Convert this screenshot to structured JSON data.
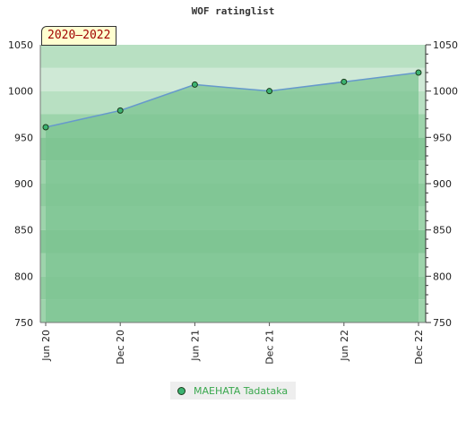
{
  "chart_data": {
    "type": "area",
    "title": "WOF ratinglist",
    "period": "2020–2022",
    "categories": [
      "Jun 20",
      "Dec 20",
      "Jun 21",
      "Dec 21",
      "Jun 22",
      "Dec 22"
    ],
    "series": [
      {
        "name": "MAEHATA Tadataka",
        "values": [
          961,
          979,
          1007,
          1000,
          1010,
          1020
        ]
      }
    ],
    "ylim": [
      750,
      1050
    ],
    "yticks": [
      750,
      800,
      850,
      900,
      950,
      1000,
      1050
    ],
    "xlabel": "",
    "ylabel": "",
    "legend": "bottom-center",
    "grid": true,
    "colors": {
      "line": "#6699cc",
      "fill": "#7cc492",
      "marker": "#3cb371",
      "legend_text": "#3aa84e"
    }
  }
}
